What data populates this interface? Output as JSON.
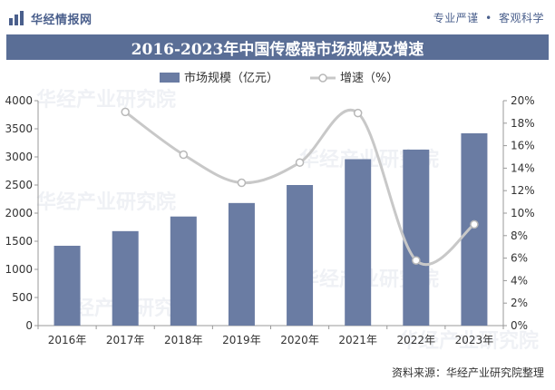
{
  "header": {
    "logo_text": "华经情报网",
    "slogan_left": "专业严谨",
    "slogan_sep": "•",
    "slogan_right": "客观科学"
  },
  "title": "2016-2023年中国传感器市场规模及增速",
  "source": "资料来源：华经产业研究院整理",
  "watermark": "华经产业研究院",
  "colors": {
    "bar": "#6a7ca3",
    "line": "#c8c8c8",
    "title_band": "#5a6e96",
    "brand": "#4a5f8c"
  },
  "chart_data": {
    "type": "bar",
    "categories": [
      "2016年",
      "2017年",
      "2018年",
      "2019年",
      "2020年",
      "2021年",
      "2022年",
      "2023年"
    ],
    "series": [
      {
        "name": "市场规模（亿元）",
        "type": "bar",
        "axis": "left",
        "values": [
          1420,
          1680,
          1940,
          2180,
          2500,
          2960,
          3130,
          3420
        ]
      },
      {
        "name": "增速（%）",
        "type": "line",
        "axis": "right",
        "smooth": true,
        "values": [
          null,
          19.0,
          15.2,
          12.7,
          14.5,
          18.9,
          5.8,
          9.0
        ]
      }
    ],
    "y_left": {
      "min": 0,
      "max": 4000,
      "ticks": [
        0,
        500,
        1000,
        1500,
        2000,
        2500,
        3000,
        3500,
        4000
      ]
    },
    "y_right": {
      "min": 0,
      "max": 20,
      "ticks": [
        "0%",
        "2%",
        "4%",
        "6%",
        "8%",
        "10%",
        "12%",
        "14%",
        "16%",
        "18%",
        "20%"
      ]
    },
    "legend_position": "top-center",
    "grid": false
  }
}
